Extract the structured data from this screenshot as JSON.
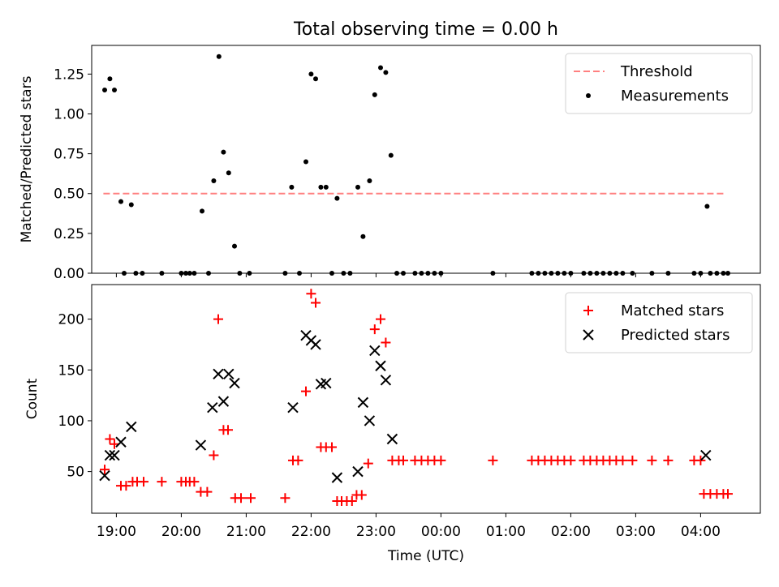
{
  "title": "Total observing time = 0.00 h",
  "chart_data": [
    {
      "type": "scatter",
      "ylabel": "Matched/Predicted stars",
      "ylim": [
        0,
        1.43
      ],
      "yticks": [
        "0.00",
        "0.25",
        "0.50",
        "0.75",
        "1.00",
        "1.25"
      ],
      "xlim": [
        18.62,
        4.92
      ],
      "legend_position": "top-right",
      "threshold": {
        "name": "Threshold",
        "value": 0.5,
        "x_range": [
          18.8,
          4.4
        ],
        "color": "#ff8080"
      },
      "series": [
        {
          "name": "Measurements",
          "color": "#000000",
          "points": [
            [
              18.82,
              1.15
            ],
            [
              18.9,
              1.22
            ],
            [
              18.97,
              1.15
            ],
            [
              19.07,
              0.45
            ],
            [
              19.23,
              0.43
            ],
            [
              19.12,
              0
            ],
            [
              19.3,
              0
            ],
            [
              19.4,
              0
            ],
            [
              19.7,
              0
            ],
            [
              20.0,
              0
            ],
            [
              20.07,
              0
            ],
            [
              20.13,
              0
            ],
            [
              20.2,
              0
            ],
            [
              20.32,
              0.39
            ],
            [
              20.42,
              0
            ],
            [
              20.5,
              0.58
            ],
            [
              20.58,
              1.36
            ],
            [
              20.65,
              0.76
            ],
            [
              20.73,
              0.63
            ],
            [
              20.82,
              0.17
            ],
            [
              20.9,
              0
            ],
            [
              21.05,
              0
            ],
            [
              21.6,
              0
            ],
            [
              21.7,
              0.54
            ],
            [
              21.82,
              0
            ],
            [
              21.92,
              0.7
            ],
            [
              22.0,
              1.25
            ],
            [
              22.07,
              1.22
            ],
            [
              22.15,
              0.54
            ],
            [
              22.23,
              0.54
            ],
            [
              22.32,
              0
            ],
            [
              22.4,
              0.47
            ],
            [
              22.5,
              0
            ],
            [
              22.6,
              0
            ],
            [
              22.72,
              0.54
            ],
            [
              22.8,
              0.23
            ],
            [
              22.9,
              0.58
            ],
            [
              22.98,
              1.12
            ],
            [
              23.07,
              1.29
            ],
            [
              23.15,
              1.26
            ],
            [
              23.23,
              0.74
            ],
            [
              23.32,
              0
            ],
            [
              23.42,
              0
            ],
            [
              23.6,
              0
            ],
            [
              23.7,
              0
            ],
            [
              23.8,
              0
            ],
            [
              23.9,
              0
            ],
            [
              24.0,
              0
            ],
            [
              24.8,
              0
            ],
            [
              25.4,
              0
            ],
            [
              25.5,
              0
            ],
            [
              25.6,
              0
            ],
            [
              25.7,
              0
            ],
            [
              25.8,
              0
            ],
            [
              25.9,
              0
            ],
            [
              26.0,
              0
            ],
            [
              26.2,
              0
            ],
            [
              26.3,
              0
            ],
            [
              26.4,
              0
            ],
            [
              26.5,
              0
            ],
            [
              26.6,
              0
            ],
            [
              26.7,
              0
            ],
            [
              26.8,
              0
            ],
            [
              26.95,
              0
            ],
            [
              27.25,
              0
            ],
            [
              27.5,
              0
            ],
            [
              27.9,
              0
            ],
            [
              28.0,
              0
            ],
            [
              28.1,
              0.42
            ],
            [
              28.15,
              0
            ],
            [
              28.25,
              0
            ],
            [
              28.35,
              0
            ],
            [
              28.42,
              0
            ]
          ]
        }
      ]
    },
    {
      "type": "scatter",
      "xlabel": "Time (UTC)",
      "ylabel": "Count",
      "ylim": [
        9,
        234
      ],
      "yticks": [
        "50",
        "100",
        "150",
        "200"
      ],
      "xlim": [
        18.62,
        4.92
      ],
      "xticks": [
        "19:00",
        "20:00",
        "21:00",
        "22:00",
        "23:00",
        "00:00",
        "01:00",
        "02:00",
        "03:00",
        "04:00"
      ],
      "legend_position": "top-right",
      "series": [
        {
          "name": "Matched stars",
          "marker": "plus",
          "color": "#ff0000",
          "points": [
            [
              18.82,
              52
            ],
            [
              18.9,
              82
            ],
            [
              18.97,
              77
            ],
            [
              19.07,
              36
            ],
            [
              19.15,
              36
            ],
            [
              19.25,
              40
            ],
            [
              19.32,
              40
            ],
            [
              19.42,
              40
            ],
            [
              19.7,
              40
            ],
            [
              20.0,
              40
            ],
            [
              20.07,
              40
            ],
            [
              20.13,
              40
            ],
            [
              20.2,
              40
            ],
            [
              20.3,
              30
            ],
            [
              20.4,
              30
            ],
            [
              20.5,
              66
            ],
            [
              20.57,
              200
            ],
            [
              20.65,
              91
            ],
            [
              20.72,
              91
            ],
            [
              20.83,
              24
            ],
            [
              20.92,
              24
            ],
            [
              21.07,
              24
            ],
            [
              21.6,
              24
            ],
            [
              21.72,
              61
            ],
            [
              21.8,
              61
            ],
            [
              21.92,
              129
            ],
            [
              22.0,
              225
            ],
            [
              22.07,
              216
            ],
            [
              22.15,
              74
            ],
            [
              22.23,
              74
            ],
            [
              22.32,
              74
            ],
            [
              22.4,
              21
            ],
            [
              22.47,
              21
            ],
            [
              22.55,
              21
            ],
            [
              22.63,
              21
            ],
            [
              22.7,
              27
            ],
            [
              22.78,
              27
            ],
            [
              22.88,
              58
            ],
            [
              22.98,
              190
            ],
            [
              23.07,
              200
            ],
            [
              23.15,
              177
            ],
            [
              23.25,
              61
            ],
            [
              23.35,
              61
            ],
            [
              23.42,
              61
            ],
            [
              23.6,
              61
            ],
            [
              23.7,
              61
            ],
            [
              23.8,
              61
            ],
            [
              23.9,
              61
            ],
            [
              24.0,
              61
            ],
            [
              24.8,
              61
            ],
            [
              25.4,
              61
            ],
            [
              25.5,
              61
            ],
            [
              25.6,
              61
            ],
            [
              25.7,
              61
            ],
            [
              25.8,
              61
            ],
            [
              25.9,
              61
            ],
            [
              26.0,
              61
            ],
            [
              26.2,
              61
            ],
            [
              26.3,
              61
            ],
            [
              26.4,
              61
            ],
            [
              26.5,
              61
            ],
            [
              26.6,
              61
            ],
            [
              26.7,
              61
            ],
            [
              26.8,
              61
            ],
            [
              26.95,
              61
            ],
            [
              27.25,
              61
            ],
            [
              27.5,
              61
            ],
            [
              27.9,
              61
            ],
            [
              28.0,
              61
            ],
            [
              28.05,
              28
            ],
            [
              28.15,
              28
            ],
            [
              28.25,
              28
            ],
            [
              28.35,
              28
            ],
            [
              28.42,
              28
            ]
          ]
        },
        {
          "name": "Predicted stars",
          "marker": "x",
          "color": "#000000",
          "points": [
            [
              18.82,
              46
            ],
            [
              18.9,
              66
            ],
            [
              18.97,
              66
            ],
            [
              19.07,
              79
            ],
            [
              19.23,
              94
            ],
            [
              20.3,
              76
            ],
            [
              20.48,
              113
            ],
            [
              20.57,
              146
            ],
            [
              20.65,
              119
            ],
            [
              20.73,
              146
            ],
            [
              20.82,
              137
            ],
            [
              21.72,
              113
            ],
            [
              21.92,
              184
            ],
            [
              22.0,
              179
            ],
            [
              22.07,
              175
            ],
            [
              22.15,
              136
            ],
            [
              22.23,
              137
            ],
            [
              22.4,
              44
            ],
            [
              22.72,
              50
            ],
            [
              22.8,
              118
            ],
            [
              22.9,
              100
            ],
            [
              22.98,
              169
            ],
            [
              23.07,
              154
            ],
            [
              23.15,
              140
            ],
            [
              23.25,
              82
            ],
            [
              28.08,
              66
            ]
          ]
        }
      ]
    }
  ]
}
